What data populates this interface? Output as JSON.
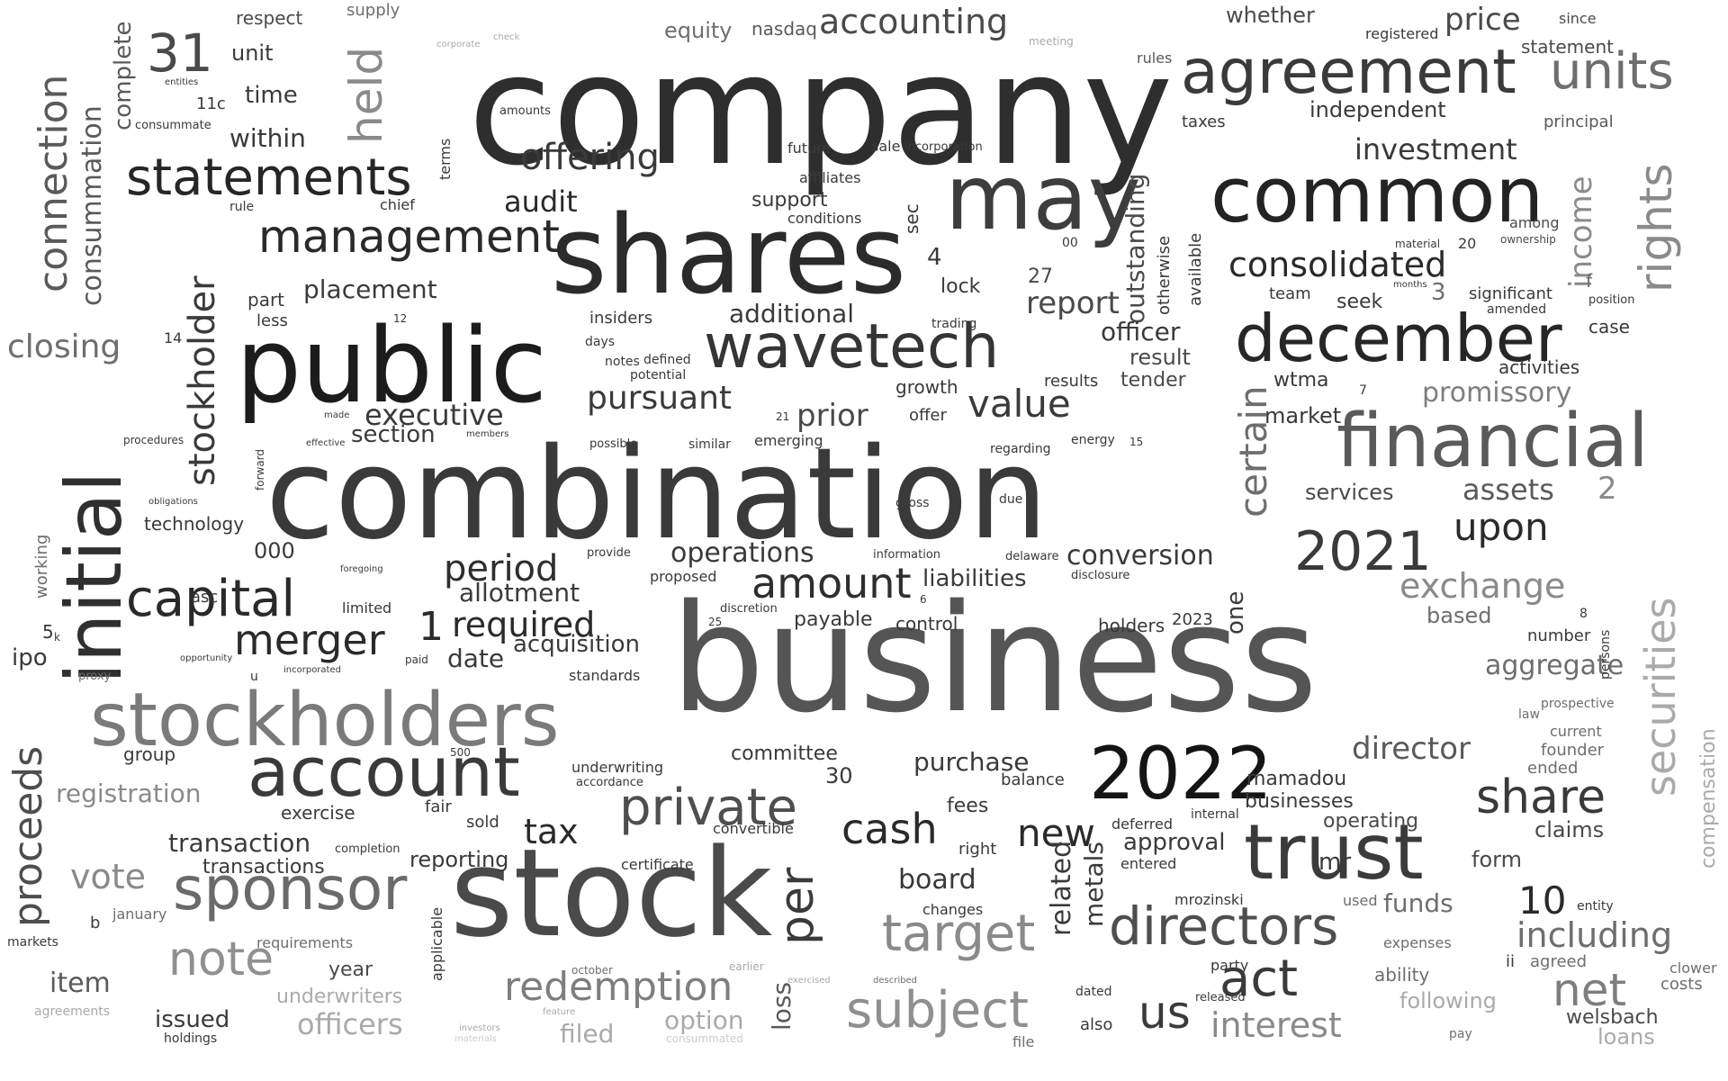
{
  "words": [
    {
      "text": "company",
      "color": "#2e2e2e"
    },
    {
      "text": "business",
      "color": "#555555"
    },
    {
      "text": "combination",
      "color": "#3a3a3a"
    },
    {
      "text": "shares",
      "color": "#2b2b2b"
    },
    {
      "text": "stock",
      "color": "#4a4a4a"
    },
    {
      "text": "public",
      "color": "#1c1c1c"
    },
    {
      "text": "may",
      "color": "#3d3d3d"
    },
    {
      "text": "common",
      "color": "#232323"
    },
    {
      "text": "stockholders",
      "color": "#7a7a7a"
    },
    {
      "text": "financial",
      "color": "#5a5a5a"
    },
    {
      "text": "trust",
      "color": "#3b3b3b"
    },
    {
      "text": "december",
      "color": "#262626"
    },
    {
      "text": "initial",
      "color": "#2f2f2f"
    },
    {
      "text": "2022",
      "color": "#141414"
    },
    {
      "text": "wavetech",
      "color": "#353535"
    },
    {
      "text": "agreement",
      "color": "#3a3a3a"
    },
    {
      "text": "account",
      "color": "#3a3a3a"
    },
    {
      "text": "sponsor",
      "color": "#6a6a6a"
    },
    {
      "text": "statements",
      "color": "#262626"
    },
    {
      "text": "management",
      "color": "#2a2a2a"
    },
    {
      "text": "units",
      "color": "#6e6e6e"
    },
    {
      "text": "private",
      "color": "#4e4e4e"
    },
    {
      "text": "directors",
      "color": "#4f4f4f"
    },
    {
      "text": "subject",
      "color": "#8f8f8f"
    },
    {
      "text": "target",
      "color": "#8a8a8a"
    },
    {
      "text": "2021",
      "color": "#3a3a3a"
    },
    {
      "text": "capital",
      "color": "#2a2a2a"
    },
    {
      "text": "note",
      "color": "#909090"
    },
    {
      "text": "act",
      "color": "#3a3a3a"
    },
    {
      "text": "share",
      "color": "#3a3a3a"
    },
    {
      "text": "redemption",
      "color": "#7e7e7e"
    },
    {
      "text": "consolidated",
      "color": "#2a2a2a"
    },
    {
      "text": "merger",
      "color": "#2a2a2a"
    },
    {
      "text": "amount",
      "color": "#2e2e2e"
    },
    {
      "text": "period",
      "color": "#2e2e2e"
    },
    {
      "text": "net",
      "color": "#7e7e7e"
    },
    {
      "text": "exchange",
      "color": "#8a8a8a"
    },
    {
      "text": "us",
      "color": "#3a3a3a"
    },
    {
      "text": "cash",
      "color": "#2a2a2a"
    },
    {
      "text": "new",
      "color": "#2a2a2a"
    },
    {
      "text": "value",
      "color": "#3a3a3a"
    },
    {
      "text": "including",
      "color": "#6e6e6e"
    },
    {
      "text": "interest",
      "color": "#8a8a8a"
    },
    {
      "text": "director",
      "color": "#5a5a5a"
    },
    {
      "text": "upon",
      "color": "#2a2a2a"
    },
    {
      "text": "offering",
      "color": "#3a3a3a"
    },
    {
      "text": "closing",
      "color": "#6e6e6e"
    },
    {
      "text": "proceeds",
      "color": "#4e4e4e"
    },
    {
      "text": "stockholder",
      "color": "#3a3a3a"
    },
    {
      "text": "held",
      "color": "#8a8a8a"
    },
    {
      "text": "securities",
      "color": "#aaaaaa"
    },
    {
      "text": "rights",
      "color": "#8a8a8a"
    },
    {
      "text": "certain",
      "color": "#6e6e6e"
    },
    {
      "text": "connection",
      "color": "#5a5a5a"
    },
    {
      "text": "per",
      "color": "#3a3a3a"
    },
    {
      "text": "placement",
      "color": "#3a3a3a"
    },
    {
      "text": "executive",
      "color": "#3a3a3a"
    },
    {
      "text": "pursuant",
      "color": "#3a3a3a"
    },
    {
      "text": "required",
      "color": "#2a2a2a"
    },
    {
      "text": "tax",
      "color": "#2a2a2a"
    },
    {
      "text": "vote",
      "color": "#8a8a8a"
    },
    {
      "text": "report",
      "color": "#4a4a4a"
    },
    {
      "text": "prior",
      "color": "#4a4a4a"
    },
    {
      "text": "item",
      "color": "#5a5a5a"
    },
    {
      "text": "price",
      "color": "#4a4a4a"
    },
    {
      "text": "audit",
      "color": "#2a2a2a"
    },
    {
      "text": "allotment",
      "color": "#3a3a3a"
    },
    {
      "text": "accounting",
      "color": "#4a4a4a"
    },
    {
      "text": "investment",
      "color": "#3a3a3a"
    },
    {
      "text": "assets",
      "color": "#5a5a5a"
    },
    {
      "text": "date",
      "color": "#3a3a3a"
    },
    {
      "text": "option",
      "color": "#aaaaaa"
    },
    {
      "text": "officers",
      "color": "#aaaaaa"
    },
    {
      "text": "aggregate",
      "color": "#6e6e6e"
    },
    {
      "text": "promissory",
      "color": "#7e7e7e"
    },
    {
      "text": "registration",
      "color": "#8a8a8a"
    },
    {
      "text": "transaction",
      "color": "#3a3a3a"
    },
    {
      "text": "conversion",
      "color": "#3a3a3a"
    },
    {
      "text": "operations",
      "color": "#3a3a3a"
    },
    {
      "text": "acquisition",
      "color": "#3a3a3a"
    },
    {
      "text": "purchase",
      "color": "#3a3a3a"
    },
    {
      "text": "outstanding",
      "color": "#4a4a4a"
    },
    {
      "text": "income",
      "color": "#8a8a8a"
    },
    {
      "text": "officer",
      "color": "#3a3a3a"
    },
    {
      "text": "additional",
      "color": "#3a3a3a"
    },
    {
      "text": "independent",
      "color": "#3a3a3a"
    },
    {
      "text": "section",
      "color": "#3a3a3a"
    },
    {
      "text": "liabilities",
      "color": "#3a3a3a"
    },
    {
      "text": "board",
      "color": "#3a3a3a"
    },
    {
      "text": "approval",
      "color": "#3a3a3a"
    },
    {
      "text": "related",
      "color": "#3a3a3a"
    },
    {
      "text": "metals",
      "color": "#3a3a3a"
    },
    {
      "text": "filed",
      "color": "#aaaaaa"
    },
    {
      "text": "issued",
      "color": "#3a3a3a"
    },
    {
      "text": "statement",
      "color": "#4a4a4a"
    },
    {
      "text": "result",
      "color": "#4a4a4a"
    },
    {
      "text": "tender",
      "color": "#4a4a4a"
    },
    {
      "text": "wtma",
      "color": "#3a3a3a"
    },
    {
      "text": "market",
      "color": "#3a3a3a"
    },
    {
      "text": "services",
      "color": "#4a4a4a"
    },
    {
      "text": "loss",
      "color": "#5a5a5a"
    },
    {
      "text": "funds",
      "color": "#6e6e6e"
    },
    {
      "text": "following",
      "color": "#aaaaaa"
    },
    {
      "text": "welsbach",
      "color": "#4a4a4a"
    },
    {
      "text": "loans",
      "color": "#aaaaaa"
    },
    {
      "text": "mamadou",
      "color": "#3a3a3a"
    },
    {
      "text": "businesses",
      "color": "#3a3a3a"
    },
    {
      "text": "operating",
      "color": "#4a4a4a"
    },
    {
      "text": "claims",
      "color": "#4a4a4a"
    },
    {
      "text": "form",
      "color": "#4a4a4a"
    },
    {
      "text": "committee",
      "color": "#3a3a3a"
    },
    {
      "text": "fees",
      "color": "#3a3a3a"
    },
    {
      "text": "balance",
      "color": "#3a3a3a"
    },
    {
      "text": "payable",
      "color": "#3a3a3a"
    },
    {
      "text": "control",
      "color": "#3a3a3a"
    },
    {
      "text": "holders",
      "color": "#3a3a3a"
    },
    {
      "text": "exercise",
      "color": "#3a3a3a"
    },
    {
      "text": "reporting",
      "color": "#3a3a3a"
    },
    {
      "text": "transactions",
      "color": "#3a3a3a"
    },
    {
      "text": "group",
      "color": "#3a3a3a"
    },
    {
      "text": "year",
      "color": "#4a4a4a"
    },
    {
      "text": "underwriters",
      "color": "#aaaaaa"
    },
    {
      "text": "ipo",
      "color": "#3a3a3a"
    },
    {
      "text": "within",
      "color": "#3a3a3a"
    },
    {
      "text": "time",
      "color": "#3a3a3a"
    },
    {
      "text": "unit",
      "color": "#3a3a3a"
    },
    {
      "text": "respect",
      "color": "#4a4a4a"
    },
    {
      "text": "31",
      "color": "#4a4a4a"
    },
    {
      "text": "1",
      "color": "#2a2a2a"
    },
    {
      "text": "10",
      "color": "#2a2a2a"
    },
    {
      "text": "30",
      "color": "#3a3a3a"
    },
    {
      "text": "000",
      "color": "#3a3a3a"
    },
    {
      "text": "4",
      "color": "#3a3a3a"
    },
    {
      "text": "27",
      "color": "#4a4a4a"
    },
    {
      "text": "2",
      "color": "#8a8a8a"
    },
    {
      "text": "3",
      "color": "#6e6e6e"
    },
    {
      "text": "consummation",
      "color": "#5a5a5a"
    },
    {
      "text": "complete",
      "color": "#5a5a5a"
    },
    {
      "text": "technology",
      "color": "#3a3a3a"
    },
    {
      "text": "supply",
      "color": "#6e6e6e"
    },
    {
      "text": "whether",
      "color": "#4a4a4a"
    },
    {
      "text": "since",
      "color": "#4a4a4a"
    },
    {
      "text": "equity",
      "color": "#6e6e6e"
    },
    {
      "text": "nasdaq",
      "color": "#5a5a5a"
    },
    {
      "text": "registered",
      "color": "#3a3a3a"
    },
    {
      "text": "rules",
      "color": "#5a5a5a"
    },
    {
      "text": "taxes",
      "color": "#3a3a3a"
    },
    {
      "text": "principal",
      "color": "#5a5a5a"
    },
    {
      "text": "significant",
      "color": "#3a3a3a"
    },
    {
      "text": "amended",
      "color": "#3a3a3a"
    },
    {
      "text": "position",
      "color": "#3a3a3a"
    },
    {
      "text": "case",
      "color": "#3a3a3a"
    },
    {
      "text": "team",
      "color": "#3a3a3a"
    },
    {
      "text": "seek",
      "color": "#3a3a3a"
    },
    {
      "text": "activities",
      "color": "#3a3a3a"
    },
    {
      "text": "available",
      "color": "#3a3a3a"
    },
    {
      "text": "otherwise",
      "color": "#3a3a3a"
    },
    {
      "text": "support",
      "color": "#3a3a3a"
    },
    {
      "text": "conditions",
      "color": "#3a3a3a"
    },
    {
      "text": "affiliates",
      "color": "#3a3a3a"
    },
    {
      "text": "sale",
      "color": "#3a3a3a"
    },
    {
      "text": "incorporation",
      "color": "#3a3a3a"
    },
    {
      "text": "future",
      "color": "#3a3a3a"
    },
    {
      "text": "sec",
      "color": "#3a3a3a"
    },
    {
      "text": "lock",
      "color": "#3a3a3a"
    },
    {
      "text": "trading",
      "color": "#3a3a3a"
    },
    {
      "text": "growth",
      "color": "#3a3a3a"
    },
    {
      "text": "offer",
      "color": "#3a3a3a"
    },
    {
      "text": "results",
      "color": "#3a3a3a"
    },
    {
      "text": "regarding",
      "color": "#3a3a3a"
    },
    {
      "text": "energy",
      "color": "#3a3a3a"
    },
    {
      "text": "insiders",
      "color": "#3a3a3a"
    },
    {
      "text": "days",
      "color": "#3a3a3a"
    },
    {
      "text": "notes",
      "color": "#3a3a3a"
    },
    {
      "text": "defined",
      "color": "#3a3a3a"
    },
    {
      "text": "potential",
      "color": "#3a3a3a"
    },
    {
      "text": "part",
      "color": "#3a3a3a"
    },
    {
      "text": "less",
      "color": "#3a3a3a"
    },
    {
      "text": "chief",
      "color": "#3a3a3a"
    },
    {
      "text": "terms",
      "color": "#3a3a3a"
    },
    {
      "text": "rule",
      "color": "#3a3a3a"
    },
    {
      "text": "11c",
      "color": "#3a3a3a"
    },
    {
      "text": "emerging",
      "color": "#3a3a3a"
    },
    {
      "text": "similar",
      "color": "#3a3a3a"
    },
    {
      "text": "possible",
      "color": "#3a3a3a"
    },
    {
      "text": "gross",
      "color": "#3a3a3a"
    },
    {
      "text": "due",
      "color": "#3a3a3a"
    },
    {
      "text": "information",
      "color": "#3a3a3a"
    },
    {
      "text": "provide",
      "color": "#3a3a3a"
    },
    {
      "text": "proposed",
      "color": "#3a3a3a"
    },
    {
      "text": "delaware",
      "color": "#3a3a3a"
    },
    {
      "text": "disclosure",
      "color": "#3a3a3a"
    },
    {
      "text": "one",
      "color": "#3a3a3a"
    },
    {
      "text": "discretion",
      "color": "#3a3a3a"
    },
    {
      "text": "standards",
      "color": "#3a3a3a"
    },
    {
      "text": "limited",
      "color": "#3a3a3a"
    },
    {
      "text": "asc",
      "color": "#3a3a3a"
    },
    {
      "text": "2023",
      "color": "#3a3a3a"
    },
    {
      "text": "based",
      "color": "#6e6e6e"
    },
    {
      "text": "number",
      "color": "#3a3a3a"
    },
    {
      "text": "persons",
      "color": "#3a3a3a"
    },
    {
      "text": "prospective",
      "color": "#6e6e6e"
    },
    {
      "text": "current",
      "color": "#6e6e6e"
    },
    {
      "text": "founder",
      "color": "#6e6e6e"
    },
    {
      "text": "ended",
      "color": "#6e6e6e"
    },
    {
      "text": "law",
      "color": "#6e6e6e"
    },
    {
      "text": "compensation",
      "color": "#aaaaaa"
    },
    {
      "text": "underwriting",
      "color": "#3a3a3a"
    },
    {
      "text": "accordance",
      "color": "#3a3a3a"
    },
    {
      "text": "fair",
      "color": "#3a3a3a"
    },
    {
      "text": "sold",
      "color": "#3a3a3a"
    },
    {
      "text": "completion",
      "color": "#3a3a3a"
    },
    {
      "text": "convertible",
      "color": "#3a3a3a"
    },
    {
      "text": "certificate",
      "color": "#3a3a3a"
    },
    {
      "text": "right",
      "color": "#3a3a3a"
    },
    {
      "text": "changes",
      "color": "#3a3a3a"
    },
    {
      "text": "deferred",
      "color": "#3a3a3a"
    },
    {
      "text": "entered",
      "color": "#3a3a3a"
    },
    {
      "text": "internal",
      "color": "#3a3a3a"
    },
    {
      "text": "mr",
      "color": "#3a3a3a"
    },
    {
      "text": "used",
      "color": "#6e6e6e"
    },
    {
      "text": "expenses",
      "color": "#6e6e6e"
    },
    {
      "text": "ability",
      "color": "#6e6e6e"
    },
    {
      "text": "agreed",
      "color": "#6e6e6e"
    },
    {
      "text": "costs",
      "color": "#6e6e6e"
    },
    {
      "text": "clower",
      "color": "#6e6e6e"
    },
    {
      "text": "entity",
      "color": "#3a3a3a"
    },
    {
      "text": "mrozinski",
      "color": "#3a3a3a"
    },
    {
      "text": "party",
      "color": "#3a3a3a"
    },
    {
      "text": "dated",
      "color": "#3a3a3a"
    },
    {
      "text": "also",
      "color": "#3a3a3a"
    },
    {
      "text": "released",
      "color": "#3a3a3a"
    },
    {
      "text": "pay",
      "color": "#6e6e6e"
    },
    {
      "text": "file",
      "color": "#6e6e6e"
    },
    {
      "text": "applicable",
      "color": "#3a3a3a"
    },
    {
      "text": "requirements",
      "color": "#6e6e6e"
    },
    {
      "text": "january",
      "color": "#6e6e6e"
    },
    {
      "text": "markets",
      "color": "#3a3a3a"
    },
    {
      "text": "holdings",
      "color": "#3a3a3a"
    },
    {
      "text": "agreements",
      "color": "#aaaaaa"
    },
    {
      "text": "working",
      "color": "#6e6e6e"
    },
    {
      "text": "proxy",
      "color": "#6e6e6e"
    },
    {
      "text": "consummate",
      "color": "#3a3a3a"
    },
    {
      "text": "entities",
      "color": "#3a3a3a"
    },
    {
      "text": "obligations",
      "color": "#3a3a3a"
    },
    {
      "text": "procedures",
      "color": "#3a3a3a"
    },
    {
      "text": "forward",
      "color": "#3a3a3a"
    },
    {
      "text": "effective",
      "color": "#3a3a3a"
    },
    {
      "text": "members",
      "color": "#3a3a3a"
    },
    {
      "text": "made",
      "color": "#3a3a3a"
    },
    {
      "text": "incorporated",
      "color": "#3a3a3a"
    },
    {
      "text": "paid",
      "color": "#3a3a3a"
    },
    {
      "text": "foregoing",
      "color": "#3a3a3a"
    },
    {
      "text": "opportunity",
      "color": "#3a3a3a"
    },
    {
      "text": "amounts",
      "color": "#3a3a3a"
    },
    {
      "text": "corporate",
      "color": "#aaaaaa"
    },
    {
      "text": "check",
      "color": "#aaaaaa"
    },
    {
      "text": "meeting",
      "color": "#aaaaaa"
    },
    {
      "text": "materials",
      "color": "#cccccc"
    },
    {
      "text": "consummated",
      "color": "#cccccc"
    },
    {
      "text": "feature",
      "color": "#aaaaaa"
    },
    {
      "text": "investors",
      "color": "#aaaaaa"
    },
    {
      "text": "october",
      "color": "#6e6e6e"
    },
    {
      "text": "earlier",
      "color": "#aaaaaa"
    },
    {
      "text": "described",
      "color": "#6e6e6e"
    },
    {
      "text": "exercised",
      "color": "#aaaaaa"
    },
    {
      "text": "among",
      "color": "#4a4a4a"
    },
    {
      "text": "ownership",
      "color": "#4a4a4a"
    },
    {
      "text": "material",
      "color": "#3a3a3a"
    },
    {
      "text": "months",
      "color": "#3a3a3a"
    },
    {
      "text": "20",
      "color": "#3a3a3a"
    },
    {
      "text": "7",
      "color": "#3a3a3a"
    },
    {
      "text": "15",
      "color": "#3a3a3a"
    },
    {
      "text": "14",
      "color": "#3a3a3a"
    },
    {
      "text": "5",
      "color": "#3a3a3a"
    },
    {
      "text": "8",
      "color": "#3a3a3a"
    },
    {
      "text": "6",
      "color": "#3a3a3a"
    },
    {
      "text": "25",
      "color": "#3a3a3a"
    },
    {
      "text": "21",
      "color": "#3a3a3a"
    },
    {
      "text": "12",
      "color": "#3a3a3a"
    },
    {
      "text": "00",
      "color": "#3a3a3a"
    },
    {
      "text": "500",
      "color": "#3a3a3a"
    },
    {
      "text": "f",
      "color": "#6e6e6e"
    },
    {
      "text": "u",
      "color": "#3a3a3a"
    },
    {
      "text": "b",
      "color": "#3a3a3a"
    },
    {
      "text": "ii",
      "color": "#3a3a3a"
    },
    {
      "text": "k",
      "color": "#3a3a3a"
    }
  ]
}
